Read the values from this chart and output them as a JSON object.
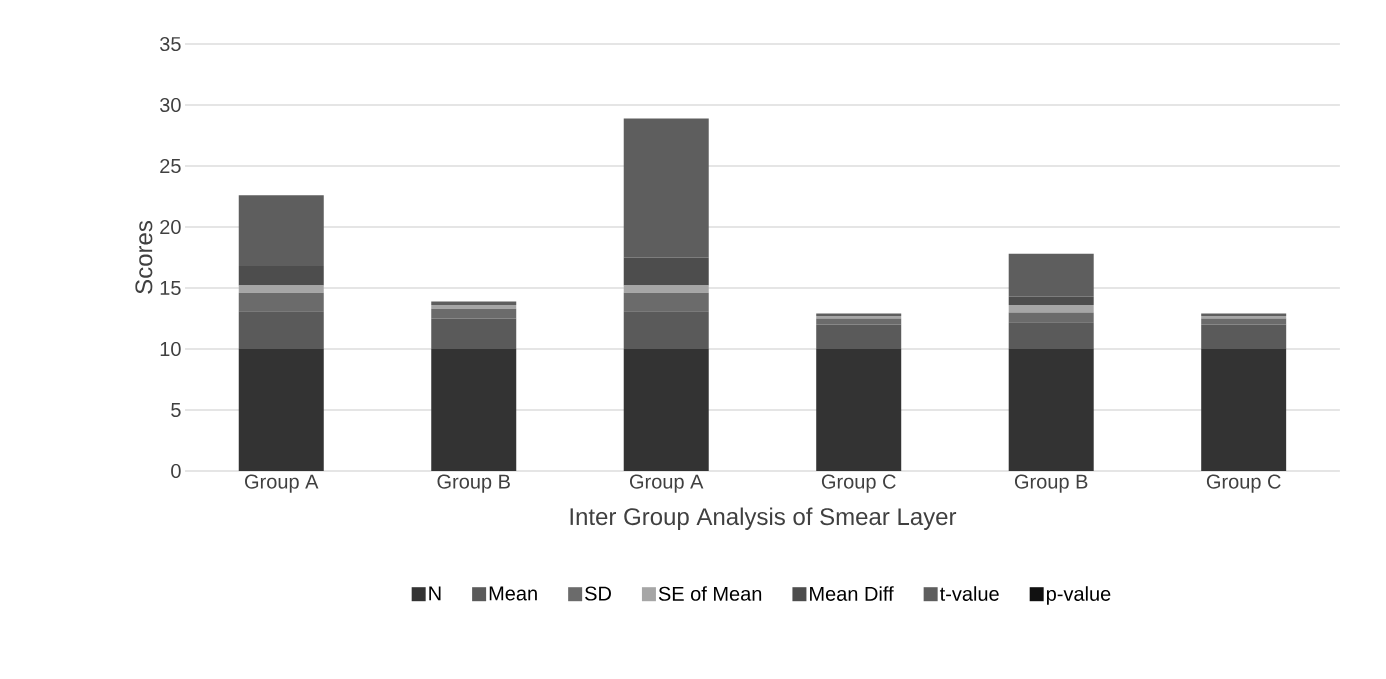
{
  "chart_data": {
    "type": "bar",
    "stacked": true,
    "xlabel": "Inter Group Analysis of Smear Layer",
    "ylabel": "Scores",
    "categories": [
      "Group A",
      "Group B",
      "Group A",
      "Group C",
      "Group B",
      "Group C"
    ],
    "series": [
      {
        "name": "N",
        "color": "#333333",
        "values": [
          10,
          10,
          10,
          10,
          10,
          10
        ]
      },
      {
        "name": "Mean",
        "color": "#5a5a5a",
        "values": [
          3.1,
          2.5,
          3.1,
          2.0,
          2.2,
          2.0
        ]
      },
      {
        "name": "SD",
        "color": "#6b6b6b",
        "values": [
          1.5,
          0.8,
          1.5,
          0.5,
          0.8,
          0.5
        ]
      },
      {
        "name": "SE of Mean",
        "color": "#a6a6a6",
        "values": [
          0.6,
          0.3,
          0.6,
          0.2,
          0.6,
          0.2
        ]
      },
      {
        "name": "Mean Diff",
        "color": "#4d4d4d",
        "values": [
          1.6,
          0,
          2.3,
          0,
          0.7,
          0
        ]
      },
      {
        "name": "t-value",
        "color": "#5e5e5e",
        "values": [
          5.8,
          0.3,
          11.4,
          0.2,
          3.5,
          0.2
        ]
      },
      {
        "name": "p-value",
        "color": "#111111",
        "values": [
          0,
          0,
          0,
          0,
          0,
          0
        ]
      }
    ],
    "ylim": [
      0,
      35
    ],
    "yticks": [
      0,
      5,
      10,
      15,
      20,
      25,
      30,
      35
    ],
    "grid": "y",
    "legend": "bottom"
  }
}
